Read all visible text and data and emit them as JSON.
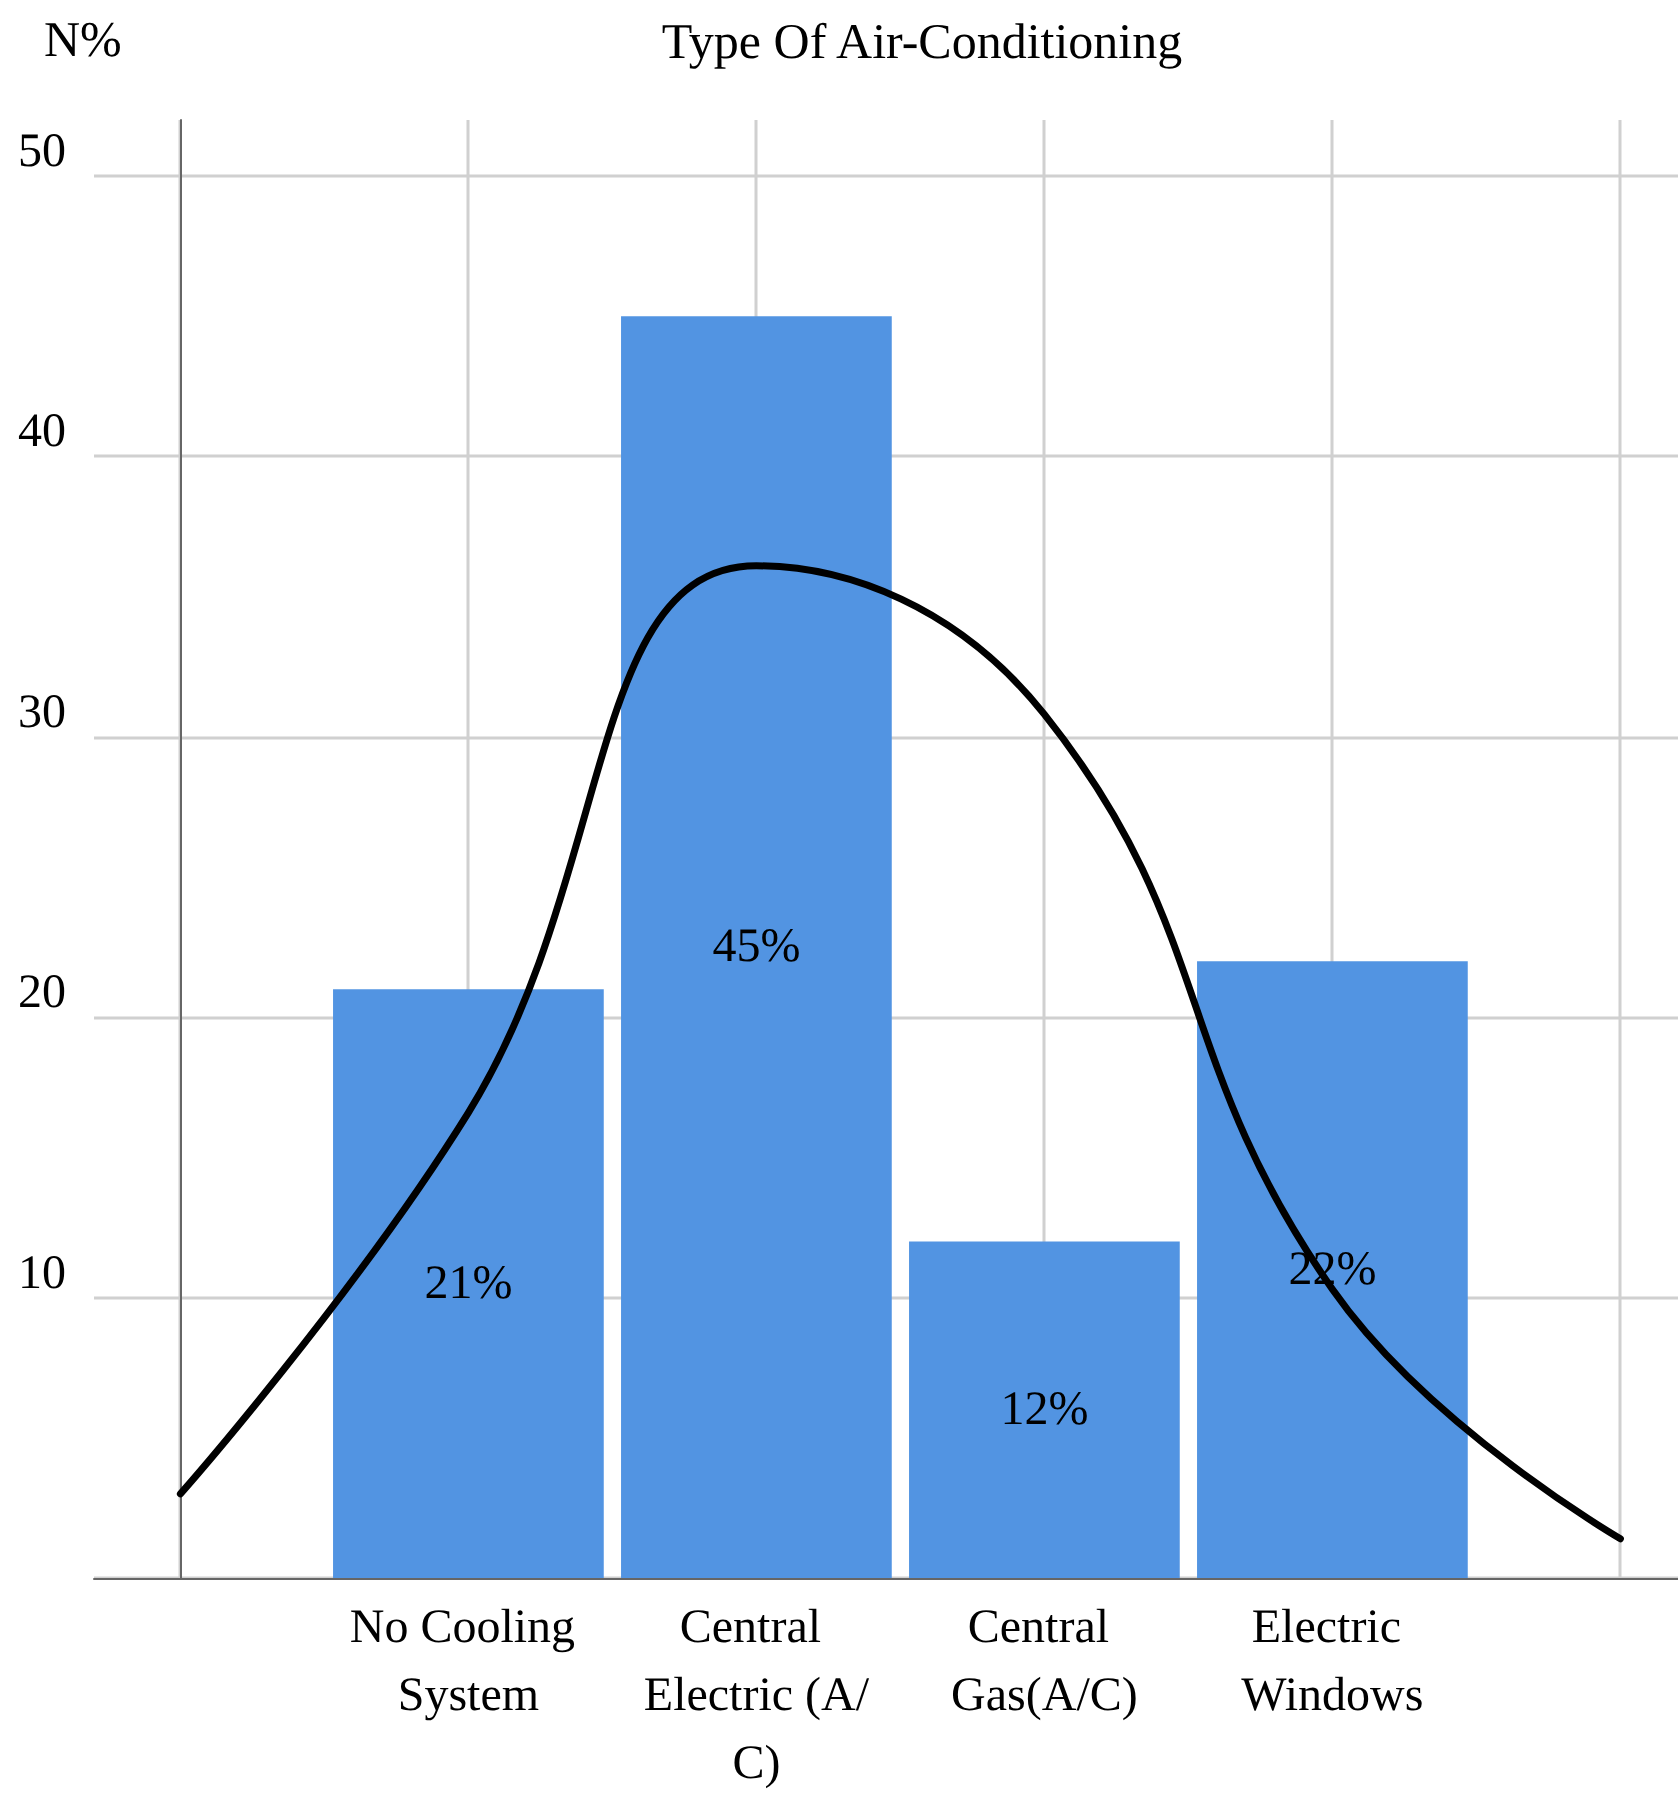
{
  "chart_data": {
    "type": "bar",
    "title": "Type Of Air-Conditioning",
    "ylabel": "N%",
    "categories": [
      null,
      "No Cooling System",
      "Central Electric (A/C)",
      "Central Gas(A/C)",
      "Electric Windows",
      null
    ],
    "series": [
      {
        "color": "#5294e2",
        "values": [
          null,
          21,
          45,
          12,
          22,
          null
        ],
        "value_labels": [
          null,
          "21%",
          "45%",
          "12%",
          "22%",
          null
        ]
      },
      {
        "type": "line",
        "color": "#000000",
        "values": [
          3.0,
          16.6,
          36.1,
          30.8,
          10.3,
          1.4
        ]
      }
    ],
    "ylim": [
      0,
      52
    ],
    "yticks": [
      {
        "value": 0,
        "label": null
      },
      10,
      20,
      30,
      40,
      50
    ],
    "grid": true,
    "marker": "none",
    "line_style": "solid"
  }
}
